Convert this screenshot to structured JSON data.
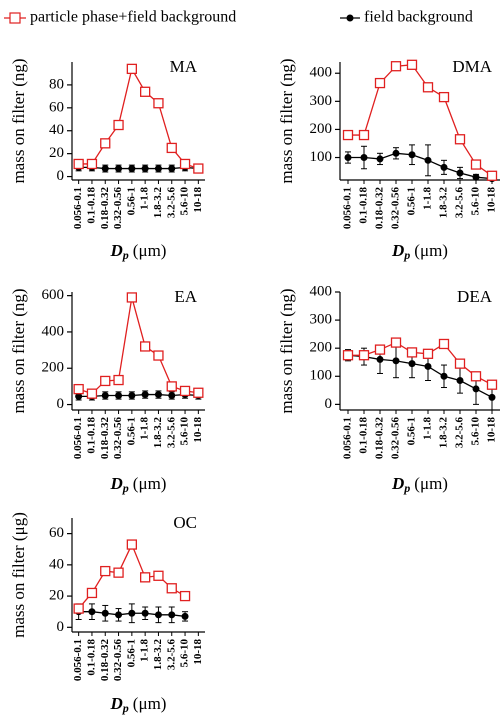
{
  "chart_data": [
    {
      "type": "line",
      "label": "MA",
      "ylabel": "mass on filter (ng)",
      "xlabel": [
        "D",
        "p",
        "(μm)"
      ],
      "categories": [
        "0.056-0.1",
        "0.1-0.18",
        "0.18-0.32",
        "0.32-0.56",
        "0.56-1",
        "1-1.8",
        "1.8-3.2",
        "3.2-5.6",
        "5.6-10",
        "10-18"
      ],
      "ylim": [
        -3,
        100
      ],
      "yticks": [
        0,
        20,
        40,
        60,
        80
      ],
      "series": [
        {
          "name": "particle phase+field background",
          "color": "#e02020",
          "marker": "square",
          "values": [
            11,
            11,
            29,
            45,
            94,
            74,
            64,
            25,
            11,
            7
          ]
        },
        {
          "name": "field background",
          "color": "#000000",
          "marker": "circle",
          "values": [
            8,
            8,
            7,
            7,
            7,
            7,
            7,
            7,
            8,
            7
          ],
          "errors": [
            3,
            3,
            3,
            3,
            3,
            3,
            3,
            3,
            3,
            3
          ]
        }
      ]
    },
    {
      "type": "line",
      "label": "DMA",
      "ylabel": "mass on filter (ng)",
      "xlabel": [
        "D",
        "p",
        "(μm)"
      ],
      "categories": [
        "0.056-0.1",
        "0.1-0.18",
        "0.18-0.32",
        "0.32-0.56",
        "0.56-1",
        "1-1.8",
        "1.8-3.2",
        "3.2-5.6",
        "5.6-10",
        "10-18"
      ],
      "ylim": [
        20,
        440
      ],
      "yticks": [
        100,
        200,
        300,
        400
      ],
      "series": [
        {
          "color": "#e02020",
          "marker": "square",
          "values": [
            180,
            180,
            365,
            425,
            430,
            350,
            315,
            165,
            75,
            35
          ]
        },
        {
          "color": "#000000",
          "marker": "circle",
          "values": [
            100,
            100,
            95,
            115,
            110,
            90,
            65,
            45,
            30,
            25
          ],
          "errors": [
            20,
            40,
            20,
            20,
            35,
            55,
            25,
            20,
            10,
            5
          ]
        }
      ]
    },
    {
      "type": "line",
      "label": "EA",
      "ylabel": "mass on filter (ng)",
      "xlabel": [
        "D",
        "p",
        "(μm)"
      ],
      "categories": [
        "0.056-0.1",
        "0.1-0.18",
        "0.18-0.32",
        "0.32-0.56",
        "0.56-1",
        "1-1.8",
        "1.8-3.2",
        "3.2-5.6",
        "5.6-10",
        "10-18"
      ],
      "ylim": [
        -30,
        620
      ],
      "yticks": [
        0,
        200,
        400,
        600
      ],
      "series": [
        {
          "color": "#e02020",
          "marker": "square",
          "values": [
            85,
            60,
            130,
            135,
            590,
            320,
            270,
            100,
            75,
            65
          ]
        },
        {
          "color": "#000000",
          "marker": "circle",
          "values": [
            45,
            45,
            50,
            50,
            50,
            55,
            55,
            50,
            55,
            50
          ],
          "errors": [
            20,
            20,
            20,
            20,
            20,
            20,
            20,
            20,
            20,
            20
          ]
        }
      ]
    },
    {
      "type": "line",
      "label": "DEA",
      "ylabel": "mass on filter (ng)",
      "xlabel": [
        "D",
        "p",
        "(μm)"
      ],
      "categories": [
        "0.056-0.1",
        "0.1-0.18",
        "0.18-0.32",
        "0.32-0.56",
        "0.56-1",
        "1-1.8",
        "1.8-3.2",
        "3.2-5.6",
        "5.6-10",
        "10-18"
      ],
      "ylim": [
        -20,
        400
      ],
      "yticks": [
        0,
        100,
        200,
        300,
        400
      ],
      "series": [
        {
          "color": "#e02020",
          "marker": "square",
          "values": [
            175,
            175,
            195,
            220,
            185,
            180,
            215,
            145,
            100,
            70
          ]
        },
        {
          "color": "#000000",
          "marker": "circle",
          "values": [
            175,
            170,
            160,
            155,
            145,
            135,
            100,
            85,
            55,
            25
          ],
          "errors": [
            20,
            30,
            50,
            60,
            50,
            50,
            40,
            45,
            55,
            45
          ]
        }
      ]
    },
    {
      "type": "line",
      "label": "OC",
      "ylabel": "mass on filter (μg)",
      "xlabel": [
        "D",
        "p",
        "(μm)"
      ],
      "categories": [
        "0.056-0.1",
        "0.1-0.18",
        "0.18-0.32",
        "0.32-0.56",
        "0.56-1",
        "1-1.8",
        "1.8-3.2",
        "3.2-5.6",
        "5.6-10",
        "10-18"
      ],
      "ylim": [
        -3,
        70
      ],
      "yticks": [
        0,
        20,
        40,
        60
      ],
      "series": [
        {
          "color": "#e02020",
          "marker": "square",
          "values": [
            12,
            22,
            36,
            35,
            53,
            32,
            33,
            25,
            20,
            null
          ]
        },
        {
          "color": "#000000",
          "marker": "circle",
          "values": [
            10,
            10,
            9,
            8,
            9,
            9,
            8,
            8,
            7,
            null
          ],
          "errors": [
            5,
            5,
            5,
            4,
            6,
            4,
            5,
            5,
            3,
            null
          ]
        }
      ]
    }
  ]
}
